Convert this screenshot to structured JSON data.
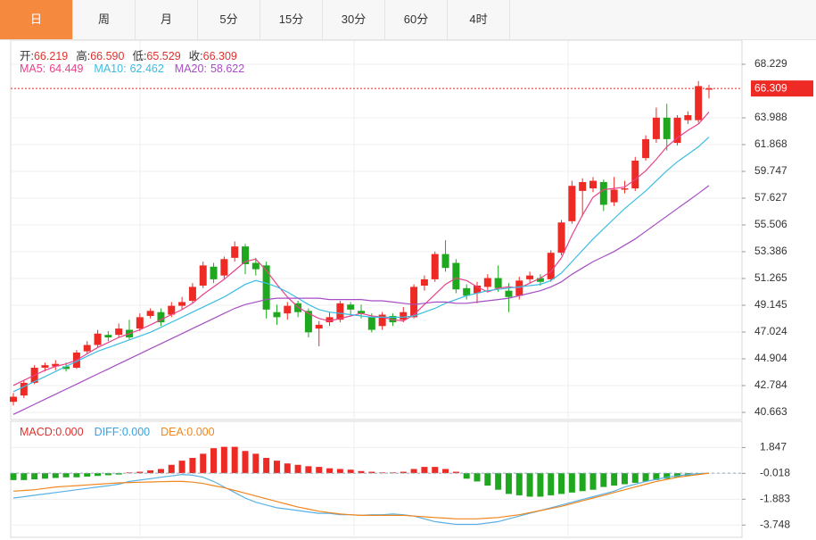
{
  "ui": {
    "tabs": [
      "日",
      "周",
      "月",
      "5分",
      "15分",
      "30分",
      "60分",
      "4时"
    ],
    "active": 0
  },
  "ohlc_header": [
    {
      "label": "开:",
      "value": "66.219"
    },
    {
      "label": "高:",
      "value": "66.590"
    },
    {
      "label": "低:",
      "value": "65.529"
    },
    {
      "label": "收:",
      "value": "66.309"
    }
  ],
  "chart_data": {
    "type": "candlestick",
    "up_color": "#ee2a24",
    "down_color": "#1fa81f",
    "ylim": [
      40.098,
      70.137
    ],
    "yticks": [
      68.229,
      63.988,
      61.868,
      59.747,
      57.627,
      55.506,
      53.386,
      51.265,
      49.145,
      47.024,
      44.904,
      42.784,
      40.663
    ],
    "grid": true,
    "price_tag": {
      "value": 66.309,
      "color": "#ee2a24"
    },
    "open": [
      41.5,
      42.0,
      43.0,
      44.2,
      44.3,
      44.3,
      44.2,
      45.5,
      46.0,
      46.8,
      46.8,
      47.2,
      47.3,
      48.3,
      48.6,
      48.4,
      49.1,
      49.5,
      50.7,
      52.2,
      51.5,
      52.9,
      53.8,
      52.5,
      52.3,
      48.6,
      48.5,
      49.3,
      48.7,
      47.3,
      47.8,
      48.0,
      49.2,
      48.7,
      48.2,
      47.5,
      48.3,
      48.0,
      48.2,
      50.7,
      51.2,
      53.2,
      52.5,
      50.5,
      50.1,
      50.6,
      51.3,
      50.3,
      49.9,
      51.2,
      51.3,
      51.2,
      53.3,
      55.8,
      58.2,
      58.4,
      58.9,
      57.3,
      58.3,
      58.4,
      60.8,
      62.3,
      64.0,
      62.0,
      63.8,
      63.8,
      66.219
    ],
    "high": [
      42.2,
      43.2,
      44.4,
      44.6,
      44.8,
      44.6,
      45.6,
      46.3,
      47.2,
      47.1,
      47.7,
      48.0,
      48.5,
      48.9,
      48.9,
      49.4,
      49.8,
      50.9,
      52.6,
      52.5,
      53.0,
      54.2,
      54.0,
      52.9,
      52.6,
      49.2,
      49.4,
      49.5,
      48.9,
      47.9,
      48.6,
      49.5,
      49.4,
      49.2,
      48.5,
      48.6,
      48.5,
      49.0,
      50.8,
      51.5,
      53.4,
      54.3,
      52.8,
      50.8,
      51.0,
      51.6,
      52.3,
      50.9,
      51.4,
      51.8,
      51.6,
      53.5,
      55.9,
      59.0,
      59.2,
      59.3,
      59.1,
      59.3,
      59.0,
      60.9,
      62.6,
      64.8,
      65.1,
      64.2,
      64.5,
      66.9,
      66.59
    ],
    "low": [
      41.2,
      41.8,
      42.9,
      43.9,
      44.0,
      43.9,
      44.1,
      45.3,
      45.8,
      46.3,
      46.6,
      46.4,
      47.1,
      48.1,
      47.5,
      48.2,
      48.8,
      49.3,
      50.5,
      50.9,
      51.2,
      52.6,
      51.6,
      51.5,
      48.1,
      47.6,
      48.0,
      48.2,
      46.6,
      45.9,
      47.5,
      47.8,
      48.3,
      48.1,
      47.0,
      47.2,
      47.5,
      47.8,
      48.1,
      50.3,
      51.0,
      51.8,
      50.1,
      49.6,
      49.3,
      50.3,
      50.2,
      48.6,
      49.6,
      50.9,
      50.7,
      51.0,
      53.1,
      55.6,
      56.2,
      58.1,
      56.6,
      57.0,
      58.0,
      58.2,
      60.6,
      62.0,
      61.4,
      61.8,
      63.5,
      63.6,
      65.529
    ],
    "close": [
      41.9,
      43.0,
      44.2,
      44.4,
      44.5,
      44.1,
      45.4,
      46.0,
      46.9,
      46.6,
      47.3,
      46.6,
      48.2,
      48.7,
      47.8,
      49.1,
      49.4,
      50.6,
      52.3,
      51.2,
      52.8,
      53.8,
      52.4,
      52.0,
      48.8,
      48.2,
      49.1,
      48.6,
      47.0,
      47.6,
      48.2,
      49.3,
      48.8,
      48.5,
      47.2,
      48.4,
      47.8,
      48.6,
      50.6,
      51.2,
      53.2,
      52.1,
      50.4,
      49.9,
      50.7,
      51.3,
      50.5,
      49.8,
      51.1,
      51.5,
      51.0,
      53.3,
      55.7,
      58.6,
      58.9,
      59.0,
      57.1,
      58.3,
      58.4,
      60.6,
      62.3,
      64.0,
      62.3,
      64.0,
      64.2,
      66.5,
      66.309
    ],
    "series": [
      {
        "name": "MA5:",
        "current": 64.449,
        "color": "#e8428c",
        "values": [
          42.8,
          43.2,
          43.6,
          44.0,
          44.3,
          44.5,
          44.8,
          45.3,
          45.8,
          46.2,
          46.6,
          46.9,
          47.2,
          47.6,
          48.0,
          48.4,
          48.8,
          49.3,
          50.0,
          50.6,
          51.2,
          51.9,
          52.6,
          52.8,
          51.9,
          50.8,
          49.8,
          49.0,
          48.5,
          48.1,
          47.9,
          48.1,
          48.3,
          48.5,
          48.3,
          48.2,
          48.0,
          47.9,
          48.4,
          49.2,
          50.0,
          50.8,
          51.3,
          51.1,
          50.6,
          50.2,
          50.5,
          50.6,
          50.5,
          50.9,
          51.3,
          51.8,
          52.9,
          54.7,
          56.3,
          57.7,
          58.3,
          58.4,
          58.5,
          59.1,
          59.8,
          60.7,
          61.7,
          62.4,
          63.0,
          63.5,
          64.449
        ]
      },
      {
        "name": "MA10:",
        "current": 62.462,
        "color": "#3bbde2",
        "values": [
          42.3,
          42.7,
          43.1,
          43.5,
          43.9,
          44.3,
          44.7,
          45.1,
          45.5,
          45.8,
          46.1,
          46.4,
          46.7,
          47.0,
          47.4,
          47.8,
          48.2,
          48.6,
          49.0,
          49.4,
          49.8,
          50.3,
          50.8,
          51.1,
          50.9,
          50.6,
          50.2,
          49.7,
          49.2,
          48.8,
          48.6,
          48.5,
          48.4,
          48.3,
          48.2,
          48.2,
          48.2,
          48.2,
          48.3,
          48.6,
          48.9,
          49.3,
          49.6,
          49.9,
          50.1,
          50.3,
          50.4,
          50.5,
          50.6,
          50.7,
          50.8,
          51.1,
          51.7,
          52.6,
          53.5,
          54.4,
          55.2,
          56.0,
          56.8,
          57.5,
          58.2,
          59.0,
          59.8,
          60.5,
          61.1,
          61.7,
          62.462
        ]
      },
      {
        "name": "MA20:",
        "current": 58.622,
        "color": "#a64ec4",
        "values": [
          40.5,
          40.9,
          41.3,
          41.7,
          42.1,
          42.5,
          42.9,
          43.3,
          43.7,
          44.1,
          44.5,
          44.9,
          45.3,
          45.7,
          46.1,
          46.5,
          46.9,
          47.3,
          47.7,
          48.1,
          48.5,
          48.9,
          49.2,
          49.4,
          49.6,
          49.7,
          49.7,
          49.7,
          49.7,
          49.7,
          49.6,
          49.6,
          49.6,
          49.6,
          49.5,
          49.5,
          49.4,
          49.3,
          49.2,
          49.3,
          49.4,
          49.4,
          49.3,
          49.3,
          49.4,
          49.5,
          49.6,
          49.7,
          49.9,
          50.1,
          50.3,
          50.6,
          51.0,
          51.6,
          52.1,
          52.6,
          53.0,
          53.4,
          53.9,
          54.4,
          55.0,
          55.6,
          56.2,
          56.8,
          57.4,
          58.0,
          58.622
        ]
      }
    ],
    "macd": {
      "ylim": [
        -4.633,
        3.743
      ],
      "yticks": [
        1.847,
        -0.018,
        -1.883,
        -3.748
      ],
      "legend": [
        {
          "label": "MACD:",
          "value": "0.000",
          "color": "#e0312c"
        },
        {
          "label": "DIFF:",
          "value": "0.000",
          "color": "#3aa0e0"
        },
        {
          "label": "DEA:",
          "value": "0.000",
          "color": "#f0861e"
        }
      ],
      "histogram": [
        -0.5,
        -0.5,
        -0.45,
        -0.4,
        -0.35,
        -0.3,
        -0.3,
        -0.25,
        -0.2,
        -0.15,
        -0.1,
        0.05,
        0.1,
        0.2,
        0.3,
        0.6,
        0.9,
        1.1,
        1.4,
        1.8,
        1.9,
        1.9,
        1.6,
        1.4,
        1.1,
        0.9,
        0.7,
        0.6,
        0.5,
        0.45,
        0.35,
        0.3,
        0.25,
        0.15,
        0.1,
        0.05,
        0.05,
        0.1,
        0.3,
        0.45,
        0.45,
        0.3,
        0.1,
        -0.4,
        -0.6,
        -0.9,
        -1.2,
        -1.5,
        -1.6,
        -1.7,
        -1.7,
        -1.6,
        -1.5,
        -1.4,
        -1.3,
        -1.2,
        -1.0,
        -0.9,
        -0.8,
        -0.7,
        -0.6,
        -0.5,
        -0.4,
        -0.3,
        -0.2,
        -0.1,
        0.0
      ],
      "diff": {
        "color": "#5ab0e6",
        "values": [
          -1.8,
          -1.7,
          -1.6,
          -1.5,
          -1.4,
          -1.3,
          -1.2,
          -1.1,
          -1.0,
          -0.9,
          -0.8,
          -0.6,
          -0.5,
          -0.4,
          -0.3,
          -0.2,
          -0.1,
          -0.15,
          -0.3,
          -0.6,
          -1.0,
          -1.4,
          -1.8,
          -2.1,
          -2.3,
          -2.5,
          -2.6,
          -2.7,
          -2.8,
          -2.9,
          -2.9,
          -3.0,
          -3.0,
          -3.05,
          -3.0,
          -3.0,
          -2.95,
          -3.0,
          -3.1,
          -3.3,
          -3.5,
          -3.6,
          -3.7,
          -3.7,
          -3.7,
          -3.6,
          -3.5,
          -3.3,
          -3.1,
          -2.9,
          -2.7,
          -2.5,
          -2.3,
          -2.1,
          -1.9,
          -1.7,
          -1.5,
          -1.3,
          -1.0,
          -0.8,
          -0.6,
          -0.45,
          -0.3,
          -0.2,
          -0.1,
          -0.05,
          0.0
        ]
      },
      "dea": {
        "color": "#f0861e",
        "values": [
          -1.3,
          -1.25,
          -1.2,
          -1.1,
          -1.0,
          -0.95,
          -0.9,
          -0.85,
          -0.8,
          -0.75,
          -0.7,
          -0.68,
          -0.66,
          -0.64,
          -0.62,
          -0.6,
          -0.6,
          -0.65,
          -0.75,
          -0.9,
          -1.05,
          -1.25,
          -1.45,
          -1.65,
          -1.85,
          -2.05,
          -2.25,
          -2.45,
          -2.6,
          -2.75,
          -2.85,
          -2.95,
          -3.0,
          -3.05,
          -3.05,
          -3.05,
          -3.05,
          -3.05,
          -3.1,
          -3.15,
          -3.2,
          -3.25,
          -3.3,
          -3.3,
          -3.3,
          -3.25,
          -3.2,
          -3.1,
          -3.0,
          -2.85,
          -2.7,
          -2.55,
          -2.4,
          -2.2,
          -2.0,
          -1.8,
          -1.6,
          -1.4,
          -1.2,
          -1.0,
          -0.8,
          -0.6,
          -0.45,
          -0.3,
          -0.2,
          -0.1,
          0.0
        ]
      }
    }
  }
}
